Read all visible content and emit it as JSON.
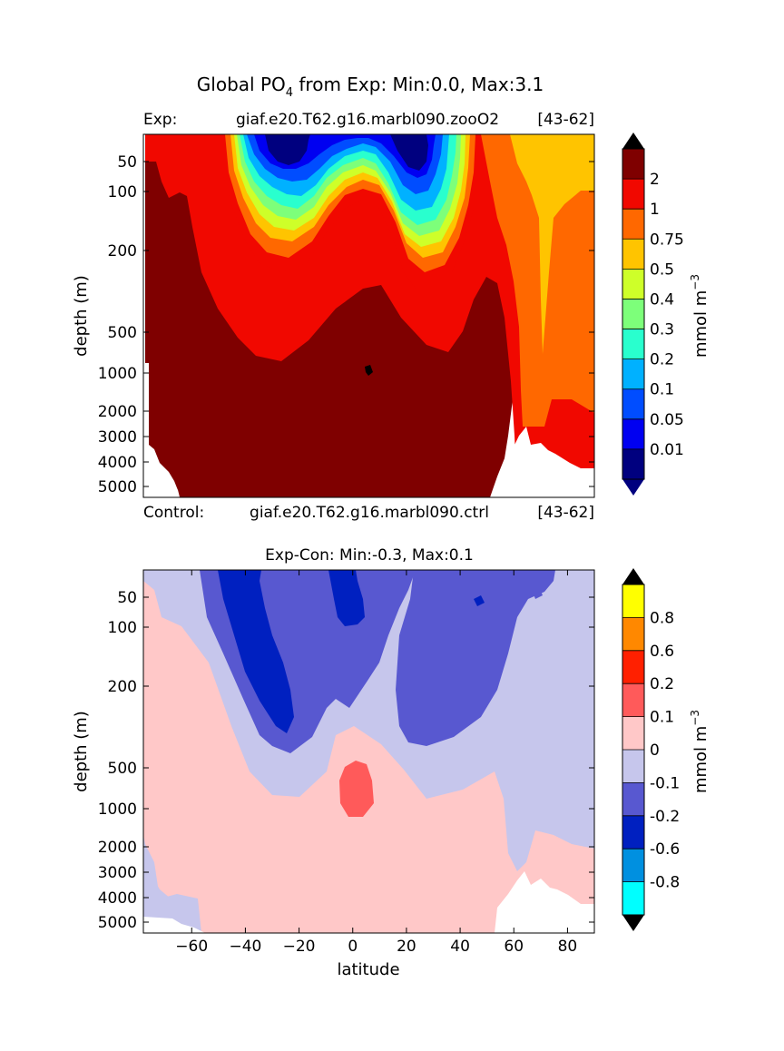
{
  "figure": {
    "title_prefix": "Global PO",
    "title_subscript": "4",
    "title_suffix": "  from Exp: Min:0.0, Max:3.1"
  },
  "chart_data": [
    {
      "type": "heatmap",
      "panel": "top",
      "left_label": "Exp:",
      "case_name": "giaf.e20.T62.g16.marbl090.zooO2",
      "years": "[43-62]",
      "bottom_left_label": "Control:",
      "bottom_case_name": "giaf.e20.T62.g16.marbl090.ctrl",
      "bottom_years": "[43-62]",
      "ylabel": "depth (m)",
      "xlim": [
        -78,
        90
      ],
      "depth_ticks": [
        "50",
        "100",
        "200",
        "500",
        "1000",
        "2000",
        "3000",
        "4000",
        "5000"
      ],
      "colorbar": {
        "unit_label": "mmol m",
        "unit_exponent": "−3",
        "levels": [
          "0.01",
          "0.05",
          "0.1",
          "0.2",
          "0.3",
          "0.4",
          "0.5",
          "0.75",
          "1",
          "2"
        ],
        "colors": [
          "#00007f",
          "#0000f1",
          "#004dff",
          "#00b1ff",
          "#29ffce",
          "#7dff7a",
          "#ceff29",
          "#ffc400",
          "#ff6800",
          "#f10800",
          "#7f0000"
        ],
        "under_color": "#00007f",
        "over_color": "#000000"
      }
    },
    {
      "type": "heatmap",
      "panel": "bottom",
      "title": "Exp-Con: Min:-0.3, Max:0.1",
      "ylabel": "depth (m)",
      "xlabel": "latitude",
      "xlim": [
        -78,
        90
      ],
      "x_ticks": [
        "−60",
        "−40",
        "−20",
        "0",
        "20",
        "40",
        "60",
        "80"
      ],
      "depth_ticks": [
        "50",
        "100",
        "200",
        "500",
        "1000",
        "2000",
        "3000",
        "4000",
        "5000"
      ],
      "colorbar": {
        "unit_label": "mmol m",
        "unit_exponent": "−3",
        "levels": [
          "-0.8",
          "-0.6",
          "-0.2",
          "-0.1",
          "0",
          "0.1",
          "0.2",
          "0.6",
          "0.8"
        ],
        "colors": [
          "#00ffff",
          "#0090e0",
          "#0020c0",
          "#5858d0",
          "#c6c6ec",
          "#ffc8c8",
          "#ff5a5a",
          "#ff2000",
          "#ff8800",
          "#ffff00"
        ],
        "under_color": "#000000",
        "over_color": "#000000"
      }
    }
  ]
}
